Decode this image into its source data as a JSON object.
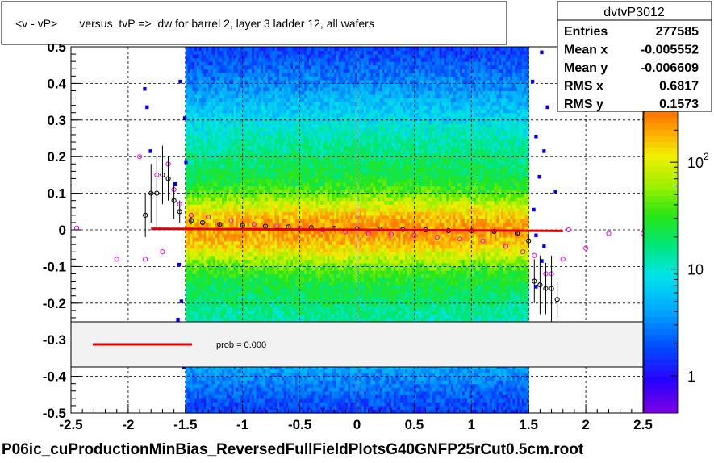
{
  "title": "<v - vP>       versus  tvP =>  dw for barrel 2, layer 3 ladder 12, all wafers",
  "footer": "P06ic_cuProductionMinBias_ReversedFullFieldPlotsG40GNFP25rCut0.5cm.root",
  "stats": {
    "name": "dvtvP3012",
    "rows": [
      {
        "label": "Entries",
        "value": "277585"
      },
      {
        "label": "Mean x",
        "value": "-0.005552"
      },
      {
        "label": "Mean y",
        "value": "-0.006609"
      },
      {
        "label": "RMS x",
        "value": "0.6817"
      },
      {
        "label": "RMS y",
        "value": "0.1573"
      }
    ]
  },
  "fit_legend": {
    "text": "prob = 0.000",
    "line_color": "#e00000"
  },
  "colorbar": {
    "labels": [
      {
        "text": "1",
        "value": 1
      },
      {
        "text": "10",
        "value": 10
      },
      {
        "text": "10",
        "sup": "2",
        "value": 100
      }
    ],
    "log_range": [
      0.45,
      300
    ]
  },
  "chart_data": {
    "type": "heatmap",
    "xlim": [
      -2.5,
      2.5
    ],
    "ylim": [
      -0.5,
      0.5
    ],
    "xticks": [
      {
        "v": -2.5,
        "t": "-2.5"
      },
      {
        "v": -2,
        "t": "-2"
      },
      {
        "v": -1.5,
        "t": "-1.5"
      },
      {
        "v": -1,
        "t": "-1"
      },
      {
        "v": -0.5,
        "t": "-0.5"
      },
      {
        "v": 0,
        "t": "0"
      },
      {
        "v": 0.5,
        "t": "0.5"
      },
      {
        "v": 1,
        "t": "1"
      },
      {
        "v": 1.5,
        "t": "1.5"
      },
      {
        "v": 2,
        "t": "2"
      },
      {
        "v": 2.5,
        "t": "2.5"
      }
    ],
    "yticks": [
      {
        "v": -0.5,
        "t": "-0.5"
      },
      {
        "v": -0.4,
        "t": "-0.4"
      },
      {
        "v": -0.3,
        "t": "-0.3"
      },
      {
        "v": -0.2,
        "t": "-0.2"
      },
      {
        "v": -0.1,
        "t": "-0.1"
      },
      {
        "v": 0,
        "t": "0"
      },
      {
        "v": 0.1,
        "t": "0.1"
      },
      {
        "v": 0.2,
        "t": "0.2"
      },
      {
        "v": 0.3,
        "t": "0.3"
      },
      {
        "v": 0.4,
        "t": "0.4"
      },
      {
        "v": 0.5,
        "t": "0.5"
      }
    ],
    "grid": true,
    "z_scale": "log",
    "z_max": 300,
    "dense_band_x": [
      -1.5,
      1.5
    ],
    "profile_mean": [
      {
        "x": -1.85,
        "y": 0.04,
        "err": 0.06
      },
      {
        "x": -1.8,
        "y": 0.1,
        "err": 0.08
      },
      {
        "x": -1.75,
        "y": 0.1,
        "err": 0.1
      },
      {
        "x": -1.7,
        "y": 0.15,
        "err": 0.08
      },
      {
        "x": -1.65,
        "y": 0.14,
        "err": 0.06
      },
      {
        "x": -1.6,
        "y": 0.08,
        "err": 0.05
      },
      {
        "x": -1.55,
        "y": 0.05,
        "err": 0.03
      },
      {
        "x": -1.45,
        "y": 0.025,
        "err": 0.01
      },
      {
        "x": -1.35,
        "y": 0.02,
        "err": 0.005
      },
      {
        "x": -1.2,
        "y": 0.015,
        "err": 0.003
      },
      {
        "x": -1.0,
        "y": 0.012,
        "err": 0.002
      },
      {
        "x": -0.8,
        "y": 0.01,
        "err": 0.002
      },
      {
        "x": -0.6,
        "y": 0.008,
        "err": 0.002
      },
      {
        "x": -0.4,
        "y": 0.006,
        "err": 0.002
      },
      {
        "x": -0.2,
        "y": 0.004,
        "err": 0.002
      },
      {
        "x": 0.0,
        "y": 0.003,
        "err": 0.002
      },
      {
        "x": 0.2,
        "y": 0.002,
        "err": 0.002
      },
      {
        "x": 0.4,
        "y": 0.001,
        "err": 0.002
      },
      {
        "x": 0.6,
        "y": 0.0,
        "err": 0.002
      },
      {
        "x": 0.8,
        "y": -0.002,
        "err": 0.002
      },
      {
        "x": 1.0,
        "y": -0.003,
        "err": 0.003
      },
      {
        "x": 1.2,
        "y": -0.004,
        "err": 0.003
      },
      {
        "x": 1.4,
        "y": -0.01,
        "err": 0.005
      },
      {
        "x": 1.5,
        "y": -0.03,
        "err": 0.02
      },
      {
        "x": 1.55,
        "y": -0.14,
        "err": 0.06
      },
      {
        "x": 1.6,
        "y": -0.15,
        "err": 0.08
      },
      {
        "x": 1.65,
        "y": -0.16,
        "err": 0.07
      },
      {
        "x": 1.7,
        "y": -0.16,
        "err": 0.09
      },
      {
        "x": 1.75,
        "y": -0.19,
        "err": 0.05
      }
    ],
    "profile_rms": [
      {
        "x": -2.45,
        "y": 0.005
      },
      {
        "x": -2.1,
        "y": -0.08
      },
      {
        "x": -1.9,
        "y": 0.2
      },
      {
        "x": -1.85,
        "y": -0.08
      },
      {
        "x": -1.75,
        "y": 0.15
      },
      {
        "x": -1.7,
        "y": -0.06
      },
      {
        "x": -1.65,
        "y": 0.18
      },
      {
        "x": -1.6,
        "y": 0.11
      },
      {
        "x": -1.55,
        "y": 0.07
      },
      {
        "x": -1.45,
        "y": 0.04
      },
      {
        "x": -1.3,
        "y": 0.035
      },
      {
        "x": -1.1,
        "y": 0.025
      },
      {
        "x": -0.9,
        "y": 0.015
      },
      {
        "x": -0.7,
        "y": 0.01
      },
      {
        "x": -0.5,
        "y": 0.005
      },
      {
        "x": -0.3,
        "y": 0.0
      },
      {
        "x": -0.1,
        "y": -0.005
      },
      {
        "x": 0.1,
        "y": -0.01
      },
      {
        "x": 0.3,
        "y": -0.012
      },
      {
        "x": 0.5,
        "y": -0.015
      },
      {
        "x": 0.7,
        "y": -0.02
      },
      {
        "x": 0.9,
        "y": -0.025
      },
      {
        "x": 1.1,
        "y": -0.03
      },
      {
        "x": 1.3,
        "y": -0.045
      },
      {
        "x": 1.45,
        "y": -0.06
      },
      {
        "x": 1.55,
        "y": -0.07
      },
      {
        "x": 1.65,
        "y": -0.12
      },
      {
        "x": 1.7,
        "y": -0.12
      },
      {
        "x": 1.8,
        "y": -0.08
      },
      {
        "x": 1.85,
        "y": 0.0
      },
      {
        "x": 2.0,
        "y": -0.05
      },
      {
        "x": 2.2,
        "y": -0.01
      },
      {
        "x": 2.5,
        "y": -0.01
      }
    ],
    "fit_line": {
      "x1": -1.8,
      "y1": 0.003,
      "x2": 1.8,
      "y2": -0.003
    }
  }
}
